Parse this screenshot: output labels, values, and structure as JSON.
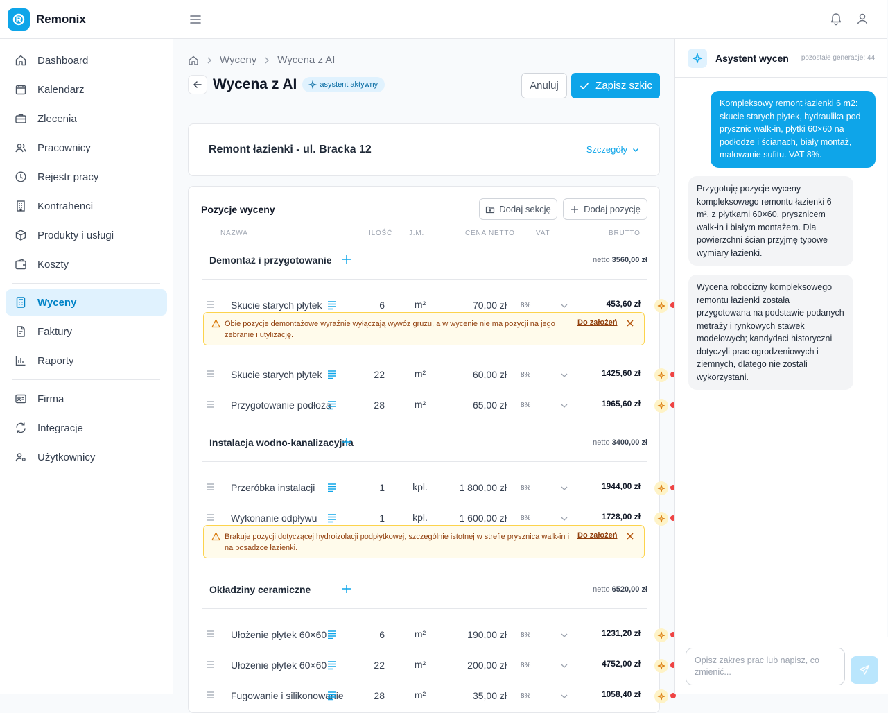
{
  "app": {
    "name": "Remonix"
  },
  "sidebar": {
    "items": [
      {
        "label": "Dashboard",
        "icon": "home-icon"
      },
      {
        "label": "Kalendarz",
        "icon": "calendar-icon"
      },
      {
        "label": "Zlecenia",
        "icon": "briefcase-icon"
      },
      {
        "label": "Pracownicy",
        "icon": "users-icon"
      },
      {
        "label": "Rejestr pracy",
        "icon": "clock-icon"
      },
      {
        "label": "Kontrahenci",
        "icon": "building-icon"
      },
      {
        "label": "Produkty i usługi",
        "icon": "box-icon"
      },
      {
        "label": "Koszty",
        "icon": "wallet-icon"
      },
      {
        "label": "Wyceny",
        "icon": "calculator-icon",
        "active": true
      },
      {
        "label": "Faktury",
        "icon": "invoice-icon"
      },
      {
        "label": "Raporty",
        "icon": "chart-icon"
      },
      {
        "label": "Firma",
        "icon": "id-card-icon"
      },
      {
        "label": "Integracje",
        "icon": "sync-icon"
      },
      {
        "label": "Użytkownicy",
        "icon": "users-cog-icon"
      }
    ]
  },
  "breadcrumb": {
    "items": [
      "Wyceny",
      "Wycena z AI"
    ]
  },
  "page": {
    "title": "Wycena z AI",
    "badge": "asystent aktywny",
    "cancel_label": "Anuluj",
    "save_label": "Zapisz szkic"
  },
  "project": {
    "name": "Remont łazienki - ul. Bracka 12",
    "details_label": "Szczegóły"
  },
  "positions": {
    "title": "Pozycje wyceny",
    "add_section_label": "Dodaj sekcję",
    "add_item_label": "Dodaj pozycję",
    "columns": {
      "name": "Nazwa",
      "qty": "Ilość",
      "unit": "J.M.",
      "price": "Cena netto",
      "vat": "VAT",
      "gross": "Brutto"
    },
    "netto_prefix": "netto",
    "sections": [
      {
        "name": "Demontaż i przygotowanie",
        "total": "3560,00 zł",
        "items": [
          {
            "name": "Skucie starych płytek",
            "qty": "6",
            "unit": "m²",
            "price": "70,00 zł",
            "vat": "8%",
            "gross": "453,60 zł"
          },
          {
            "name": "Skucie starych płytek",
            "qty": "22",
            "unit": "m²",
            "price": "60,00 zł",
            "vat": "8%",
            "gross": "1425,60 zł"
          },
          {
            "name": "Przygotowanie podłoża",
            "qty": "28",
            "unit": "m²",
            "price": "65,00 zł",
            "vat": "8%",
            "gross": "1965,60 zł"
          }
        ],
        "warning": {
          "text": "Obie pozycje demontażowe wyraźnie wyłączają wywóz gruzu, a w wycenie nie ma pozycji na jego zebranie i utylizację.",
          "link": "Do założeń"
        }
      },
      {
        "name": "Instalacja wodno-kanalizacyjna",
        "total": "3400,00 zł",
        "items": [
          {
            "name": "Przeróbka instalacji",
            "qty": "1",
            "unit": "kpl.",
            "price": "1 800,00 zł",
            "vat": "8%",
            "gross": "1944,00 zł"
          },
          {
            "name": "Wykonanie odpływu",
            "qty": "1",
            "unit": "kpl.",
            "price": "1 600,00 zł",
            "vat": "8%",
            "gross": "1728,00 zł"
          }
        ],
        "warning": {
          "text": "Brakuje pozycji dotyczącej hydroizolacji podpłytkowej, szczególnie istotnej w strefie prysznica walk-in i na posadzce łazienki.",
          "link": "Do założeń"
        }
      },
      {
        "name": "Okładziny ceramiczne",
        "total": "6520,00 zł",
        "items": [
          {
            "name": "Ułożenie płytek 60×60",
            "qty": "6",
            "unit": "m²",
            "price": "190,00 zł",
            "vat": "8%",
            "gross": "1231,20 zł"
          },
          {
            "name": "Ułożenie płytek 60×60",
            "qty": "22",
            "unit": "m²",
            "price": "200,00 zł",
            "vat": "8%",
            "gross": "4752,00 zł"
          },
          {
            "name": "Fugowanie i silikonowanie",
            "qty": "28",
            "unit": "m²",
            "price": "35,00 zł",
            "vat": "8%",
            "gross": "1058,40 zł"
          }
        ]
      }
    ]
  },
  "assistant": {
    "title": "Asystent wycen",
    "generations": "pozostałe generacje: 44",
    "messages": [
      {
        "role": "user",
        "text": "Kompleksowy remont łazienki 6 m2: skucie starych płytek, hydraulika pod prysznic walk-in, płytki 60×60 na podłodze i ścianach, biały montaż, malowanie sufitu. VAT 8%."
      },
      {
        "role": "assistant",
        "text": "Przygotuję pozycje wyceny kompleksowego remontu łazienki 6 m², z płytkami 60×60, prysznicem walk-in i białym montażem. Dla powierzchni ścian przyjmę typowe wymiary łazienki."
      },
      {
        "role": "assistant",
        "text": "Wycena robocizny kompleksowego remontu łazienki została przygotowana na podstawie podanych metraży i rynkowych stawek modelowych; kandydaci historyczni dotyczyli prac ogrodzeniowych i ziemnych, dlatego nie zostali wykorzystani."
      }
    ],
    "input_placeholder": "Opisz zakres prac lub napisz, co zmienić..."
  },
  "colors": {
    "accent": "#0ea5e9",
    "warning_bg": "#fffbeb",
    "warning_border": "#fcd34d",
    "error_dot": "#ef4444"
  }
}
